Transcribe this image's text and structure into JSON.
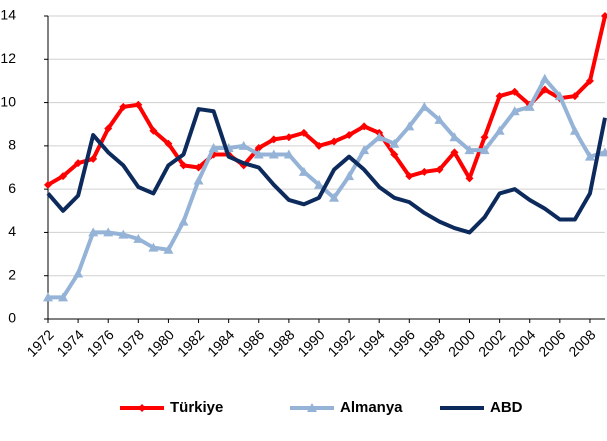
{
  "chart_data": {
    "type": "line",
    "x": [
      1972,
      1973,
      1974,
      1975,
      1976,
      1977,
      1978,
      1979,
      1980,
      1981,
      1982,
      1983,
      1984,
      1985,
      1986,
      1987,
      1988,
      1989,
      1990,
      1991,
      1992,
      1993,
      1994,
      1995,
      1996,
      1997,
      1998,
      1999,
      2000,
      2001,
      2002,
      2003,
      2004,
      2005,
      2006,
      2007,
      2008,
      2009
    ],
    "xlim": [
      1972,
      2009
    ],
    "xticks": [
      1972,
      1974,
      1976,
      1978,
      1980,
      1982,
      1984,
      1986,
      1988,
      1990,
      1992,
      1994,
      1996,
      1998,
      2000,
      2002,
      2004,
      2006,
      2008
    ],
    "ylim": [
      0,
      14
    ],
    "yticks": [
      0,
      2,
      4,
      6,
      8,
      10,
      12,
      14
    ],
    "grid": true,
    "legend": "bottom",
    "series": [
      {
        "name": "Türkiye",
        "color": "#ff0000",
        "marker": "diamond",
        "values": [
          6.2,
          6.6,
          7.2,
          7.4,
          8.8,
          9.8,
          9.9,
          8.7,
          8.1,
          7.1,
          7.0,
          7.6,
          7.6,
          7.1,
          7.9,
          8.3,
          8.4,
          8.6,
          8.0,
          8.2,
          8.5,
          8.9,
          8.6,
          7.6,
          6.6,
          6.8,
          6.9,
          7.7,
          6.5,
          8.4,
          10.3,
          10.5,
          9.9,
          10.6,
          10.2,
          10.3,
          11.0,
          14.0
        ]
      },
      {
        "name": "Almanya",
        "color": "#95b3d7",
        "marker": "triangle",
        "values": [
          1.0,
          1.0,
          2.1,
          4.0,
          4.0,
          3.9,
          3.7,
          3.3,
          3.2,
          4.5,
          6.4,
          7.9,
          7.9,
          8.0,
          7.6,
          7.6,
          7.6,
          6.8,
          6.2,
          5.6,
          6.6,
          7.8,
          8.4,
          8.1,
          8.9,
          9.8,
          9.2,
          8.4,
          7.8,
          7.8,
          8.7,
          9.6,
          9.8,
          11.1,
          10.3,
          8.7,
          7.5,
          7.7
        ]
      },
      {
        "name": "ABD",
        "color": "#0d2a5c",
        "marker": "none",
        "values": [
          5.8,
          5.0,
          5.7,
          8.5,
          7.7,
          7.1,
          6.1,
          5.8,
          7.1,
          7.6,
          9.7,
          9.6,
          7.5,
          7.2,
          7.0,
          6.2,
          5.5,
          5.3,
          5.6,
          6.9,
          7.5,
          6.9,
          6.1,
          5.6,
          5.4,
          4.9,
          4.5,
          4.2,
          4.0,
          4.7,
          5.8,
          6.0,
          5.5,
          5.1,
          4.6,
          4.6,
          5.8,
          9.3
        ]
      }
    ]
  }
}
